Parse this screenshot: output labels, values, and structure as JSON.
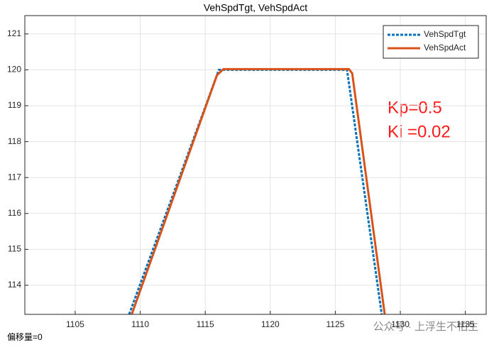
{
  "chart_data": {
    "type": "line",
    "title": "VehSpdTgt, VehSpdAct",
    "xlim": [
      1101.13,
      1136.6
    ],
    "ylim": [
      113.19,
      121.51
    ],
    "xticks": [
      1105,
      1110,
      1115,
      1120,
      1125,
      1130,
      1135
    ],
    "yticks": [
      114,
      115,
      116,
      117,
      118,
      119,
      120,
      121
    ],
    "grid": true,
    "legend": "top-right",
    "series": [
      {
        "name": "VehSpdTgt",
        "color": "#0072bd",
        "style": "dotted",
        "x": [
          1109.15,
          1116.05,
          1125.9,
          1128.57
        ],
        "values": [
          113.19,
          120,
          120,
          113.19
        ]
      },
      {
        "name": "VehSpdAct",
        "color": "#d95319",
        "style": "solid",
        "x": [
          1109.35,
          1115.9,
          1116.4,
          1126.05,
          1126.3,
          1128.8
        ],
        "values": [
          113.19,
          119.85,
          120.02,
          120.02,
          119.9,
          113.19
        ]
      }
    ],
    "annotations": [
      "Kp=0.5",
      "Ki =0.02"
    ],
    "footer": "偏移量=0",
    "watermark": "公众号 · 上浮生不怕生"
  }
}
